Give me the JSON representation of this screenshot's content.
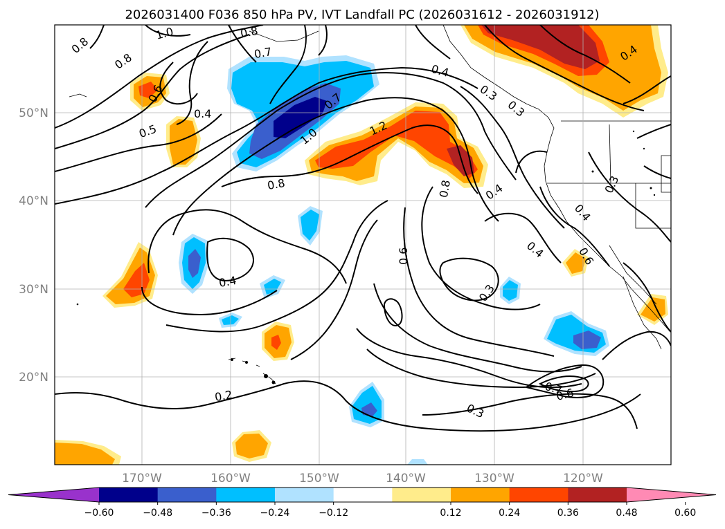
{
  "title": "2026031400 F036 850 hPa PV, IVT Landfall PC (2026031612 - 2026031912)",
  "map": {
    "lon_ticks": [
      "170°W",
      "160°W",
      "150°W",
      "140°W",
      "130°W",
      "120°W"
    ],
    "lat_ticks": [
      "50°N",
      "40°N",
      "30°N",
      "20°N"
    ]
  },
  "contour_labels": [
    {
      "text": "0.8",
      "ref": "a"
    },
    {
      "text": "1.0",
      "ref": "b"
    },
    {
      "text": "0.8",
      "ref": "c"
    },
    {
      "text": "0.7",
      "ref": "d"
    },
    {
      "text": "0.8",
      "ref": "e"
    },
    {
      "text": "0.6",
      "ref": "f"
    },
    {
      "text": "0.5",
      "ref": "g"
    },
    {
      "text": "0.4",
      "ref": "h"
    },
    {
      "text": "0.7",
      "ref": "i"
    },
    {
      "text": "1.0",
      "ref": "j"
    },
    {
      "text": "1.2",
      "ref": "k"
    },
    {
      "text": "0.4",
      "ref": "l"
    },
    {
      "text": "0.3",
      "ref": "m"
    },
    {
      "text": "0.8",
      "ref": "n"
    },
    {
      "text": "0.8",
      "ref": "o"
    },
    {
      "text": "0.4",
      "ref": "p"
    },
    {
      "text": "0.4",
      "ref": "q"
    },
    {
      "text": "0.3",
      "ref": "r"
    },
    {
      "text": "0.3",
      "ref": "s"
    },
    {
      "text": "0.6",
      "ref": "t"
    },
    {
      "text": "0.4",
      "ref": "u"
    },
    {
      "text": "0.6",
      "ref": "v"
    },
    {
      "text": "0.3",
      "ref": "w"
    },
    {
      "text": "0.4",
      "ref": "x"
    },
    {
      "text": "0.7",
      "ref": "y"
    },
    {
      "text": "0.6",
      "ref": "z"
    },
    {
      "text": "0.3",
      "ref": "aa"
    },
    {
      "text": "0.2",
      "ref": "bb"
    },
    {
      "text": "0.4",
      "ref": "cc"
    }
  ],
  "colorbar": {
    "labels": [
      "−0.60",
      "−0.48",
      "−0.36",
      "−0.24",
      "−0.12",
      "0.12",
      "0.24",
      "0.36",
      "0.48",
      "0.60"
    ],
    "colors": [
      "#9932cc",
      "#00008b",
      "#3a5fcd",
      "#00bfff",
      "#b0e2ff",
      "#ffffff",
      "#ffec8b",
      "#ffa500",
      "#ff4500",
      "#b22222",
      "#ff8ab4"
    ]
  }
}
